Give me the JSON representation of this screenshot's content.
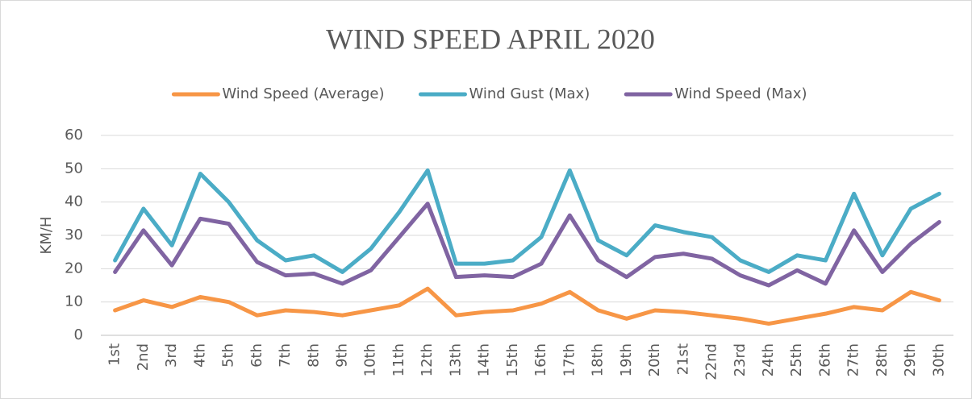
{
  "chart_data": {
    "type": "line",
    "title": "WIND SPEED APRIL 2020",
    "y_label": "KM/H",
    "categories": [
      "1st",
      "2nd",
      "3rd",
      "4th",
      "5th",
      "6th",
      "7th",
      "8th",
      "9th",
      "10th",
      "11th",
      "12th",
      "13th",
      "14th",
      "15th",
      "16th",
      "17th",
      "18th",
      "19th",
      "20th",
      "21st",
      "22nd",
      "23rd",
      "24th",
      "25th",
      "26th",
      "27th",
      "28th",
      "29th",
      "30th"
    ],
    "series": [
      {
        "name": "Wind Speed (Average)",
        "color": "#f79646",
        "values": [
          7.5,
          10.5,
          8.5,
          11.5,
          10,
          6,
          7.5,
          7,
          6,
          7.5,
          9,
          14,
          6,
          7,
          7.5,
          9.5,
          13,
          7.5,
          5,
          7.5,
          7,
          6,
          5,
          3.5,
          5,
          6.5,
          8.5,
          7.5,
          13,
          10.5
        ]
      },
      {
        "name": "Wind Gust (Max)",
        "color": "#4bacc6",
        "values": [
          22.5,
          38,
          27,
          48.5,
          40,
          28.5,
          22.5,
          24,
          19,
          26,
          37,
          49.5,
          21.5,
          21.5,
          22.5,
          29.5,
          49.5,
          28.5,
          24,
          33,
          31,
          29.5,
          22.5,
          19,
          24,
          22.5,
          42.5,
          24,
          38,
          42.5
        ]
      },
      {
        "name": "Wind Speed (Max)",
        "color": "#8064a2",
        "values": [
          19,
          31.5,
          21,
          35,
          33.5,
          22,
          18,
          18.5,
          15.5,
          19.5,
          29.5,
          39.5,
          17.5,
          18,
          17.5,
          21.5,
          36,
          22.5,
          17.5,
          23.5,
          24.5,
          23,
          18,
          15,
          19.5,
          15.5,
          31.5,
          19,
          27.5,
          34
        ]
      }
    ],
    "ylim": [
      0,
      60
    ],
    "yticks": [
      0,
      10,
      20,
      30,
      40,
      50,
      60
    ],
    "grid": true,
    "legend": "top"
  }
}
